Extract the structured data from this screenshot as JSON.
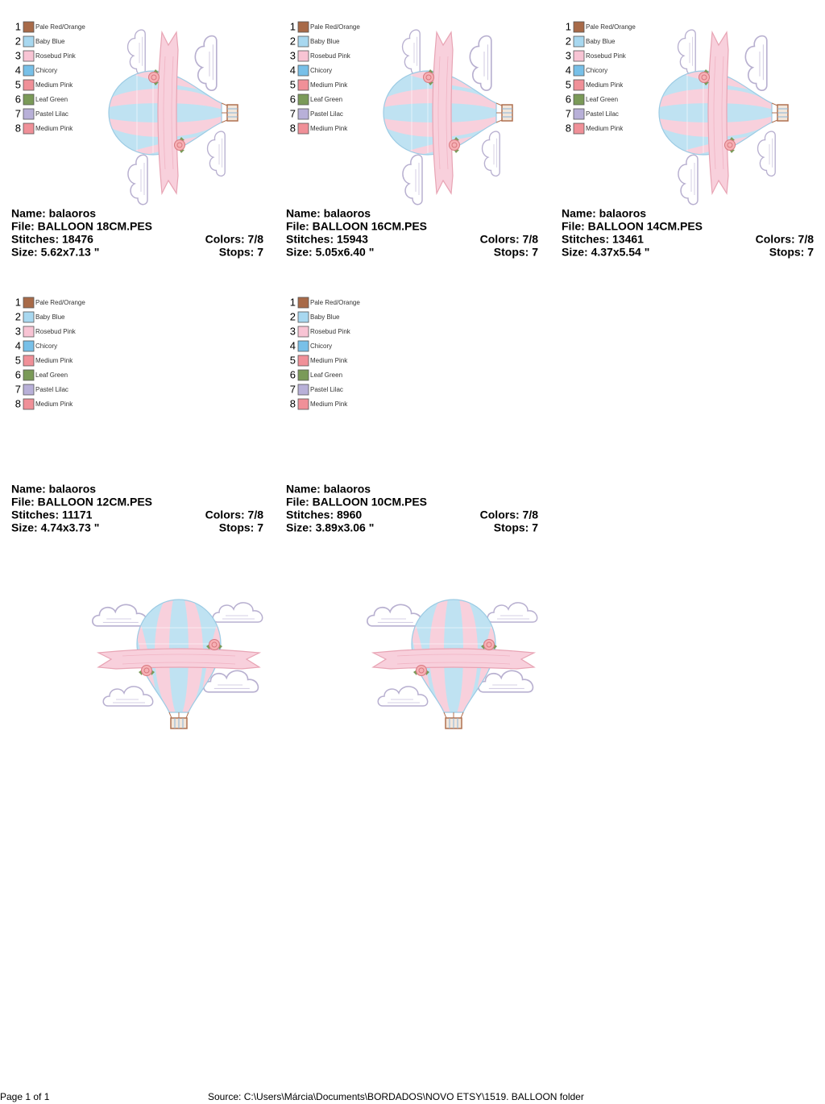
{
  "palette": [
    {
      "number": "1",
      "name": "Pale Red/Orange",
      "color": "#a86a48"
    },
    {
      "number": "2",
      "name": "Baby Blue",
      "color": "#a8d8f0"
    },
    {
      "number": "3",
      "name": "Rosebud Pink",
      "color": "#f8c4d4"
    },
    {
      "number": "4",
      "name": "Chicory",
      "color": "#78c0e8"
    },
    {
      "number": "5",
      "name": "Medium Pink",
      "color": "#f09098"
    },
    {
      "number": "6",
      "name": "Leaf Green",
      "color": "#7a9a58"
    },
    {
      "number": "7",
      "name": "Pastel Lilac",
      "color": "#b8b0d8"
    },
    {
      "number": "8",
      "name": "Medium Pink",
      "color": "#f09098"
    }
  ],
  "designs": [
    {
      "orientation": "vertical",
      "name": "Name: balaoros",
      "file": "File: BALLOON 18CM.PES",
      "stitches": "Stitches: 18476",
      "colors": "Colors: 7/8",
      "size": "Size: 5.62x7.13 \"",
      "stops": "Stops: 7"
    },
    {
      "orientation": "vertical",
      "name": "Name: balaoros",
      "file": "File: BALLOON 16CM.PES",
      "stitches": "Stitches: 15943",
      "colors": "Colors: 7/8",
      "size": "Size: 5.05x6.40 \"",
      "stops": "Stops: 7"
    },
    {
      "orientation": "vertical",
      "name": "Name: balaoros",
      "file": "File: BALLOON 14CM.PES",
      "stitches": "Stitches: 13461",
      "colors": "Colors: 7/8",
      "size": "Size: 4.37x5.54 \"",
      "stops": "Stops: 7"
    },
    {
      "orientation": "horizontal",
      "name": "Name: balaoros",
      "file": "File: BALLOON 12CM.PES",
      "stitches": "Stitches: 11171",
      "colors": "Colors: 7/8",
      "size": "Size: 4.74x3.73 \"",
      "stops": "Stops: 7"
    },
    {
      "orientation": "horizontal",
      "name": "Name: balaoros",
      "file": "File: BALLOON 10CM.PES",
      "stitches": "Stitches: 8960",
      "colors": "Colors: 7/8",
      "size": "Size: 3.89x3.06 \"",
      "stops": "Stops: 7"
    }
  ],
  "footer": {
    "page": "Page 1 of 1",
    "source": "Source: C:\\Users\\Márcia\\Documents\\BORDADOS\\NOVO ETSY\\1519. BALLOON folder"
  }
}
